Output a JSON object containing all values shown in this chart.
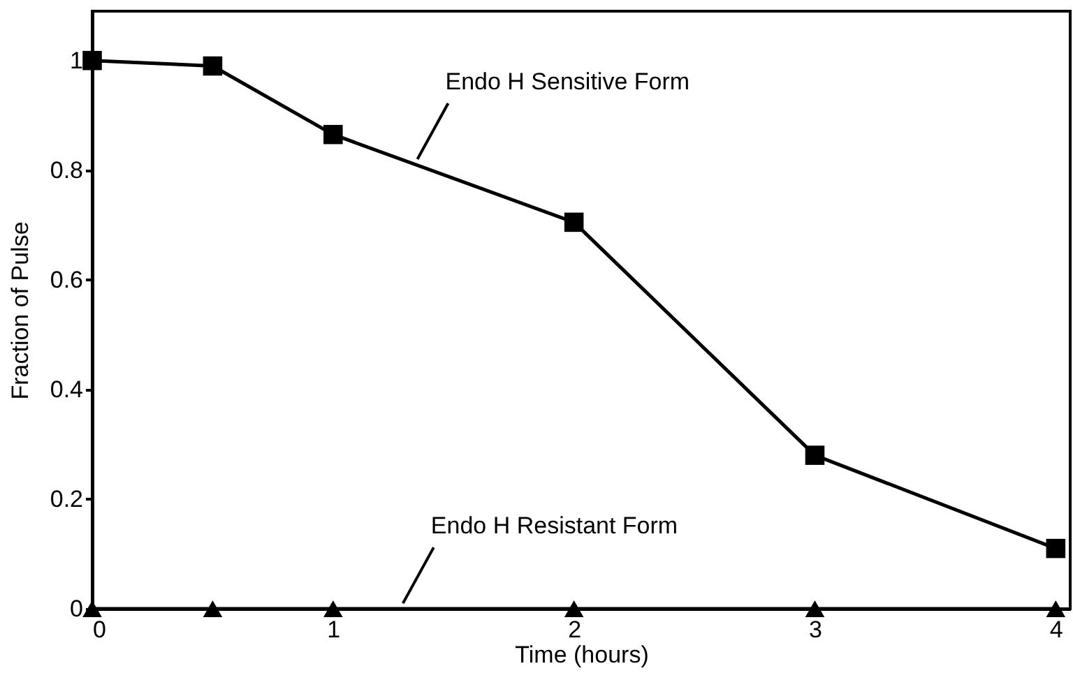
{
  "chart_data": {
    "type": "line",
    "xlabel": "Time (hours)",
    "ylabel": "Fraction of Pulse",
    "x": [
      0,
      0.5,
      1,
      2,
      3,
      4
    ],
    "series": [
      {
        "color": "#000000",
        "marker": "square",
        "values": [
          1.0,
          0.99,
          0.865,
          0.705,
          0.28,
          0.11
        ]
      },
      {
        "color": "#000000",
        "marker": "triangle",
        "values": [
          0,
          0,
          0,
          0,
          0,
          0
        ]
      }
    ],
    "xlim": [
      0,
      4.06
    ],
    "xticks": [
      0,
      1,
      2,
      3,
      4
    ],
    "ylim": [
      0,
      1.09
    ],
    "yticks": [
      0,
      0.2,
      0.4,
      0.6,
      0.8,
      1
    ],
    "line_style": "solid",
    "annotations": [
      {
        "text": "Endo H Sensitive Form",
        "x": 1.35,
        "y": 0.82
      },
      {
        "text": "Endo H Resistant Form",
        "x": 1.29,
        "y": 0.01
      }
    ]
  }
}
